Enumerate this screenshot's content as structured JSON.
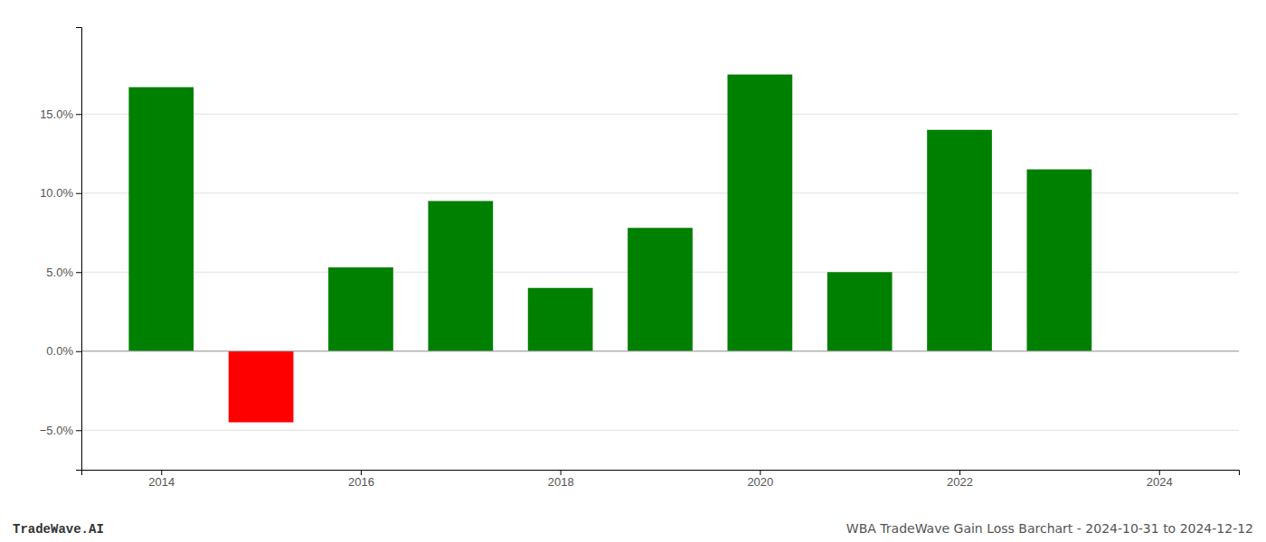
{
  "chart_data": {
    "type": "bar",
    "x": [
      2014,
      2015,
      2016,
      2017,
      2018,
      2019,
      2020,
      2021,
      2022,
      2023
    ],
    "values": [
      0.167,
      -0.045,
      0.053,
      0.095,
      0.04,
      0.078,
      0.175,
      0.05,
      0.14,
      0.115
    ],
    "colors": [
      "#008000",
      "#ff0000",
      "#008000",
      "#008000",
      "#008000",
      "#008000",
      "#008000",
      "#008000",
      "#008000",
      "#008000"
    ],
    "xlim": [
      2013.2,
      2024.8
    ],
    "xticks": [
      2014,
      2016,
      2018,
      2020,
      2022,
      2024
    ],
    "ylim": [
      -0.075,
      0.205
    ],
    "yticks": [
      {
        "value": -0.05,
        "label": "−5.0%"
      },
      {
        "value": 0.0,
        "label": "0.0%"
      },
      {
        "value": 0.05,
        "label": "5.0%"
      },
      {
        "value": 0.1,
        "label": "10.0%"
      },
      {
        "value": 0.15,
        "label": "15.0%"
      }
    ],
    "grid": true,
    "annotations": [
      "TradeWave.AI",
      "WBA TradeWave Gain Loss Barchart - 2024-10-31 to 2024-12-12"
    ]
  }
}
